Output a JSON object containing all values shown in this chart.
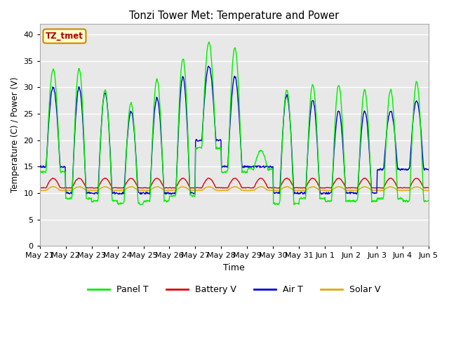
{
  "title": "Tonzi Tower Met: Temperature and Power",
  "xlabel": "Time",
  "ylabel": "Temperature (C) / Power (V)",
  "ylim": [
    0,
    42
  ],
  "yticks": [
    0,
    5,
    10,
    15,
    20,
    25,
    30,
    35,
    40
  ],
  "figure_bg": "#ffffff",
  "plot_bg": "#e8e8e8",
  "grid_color": "#ffffff",
  "legend_label": "TZ_tmet",
  "legend_items": [
    "Panel T",
    "Battery V",
    "Air T",
    "Solar V"
  ],
  "legend_colors": [
    "#00ee00",
    "#dd0000",
    "#0000dd",
    "#ddaa00"
  ],
  "line_colors": {
    "panel_t": "#00ee00",
    "battery_v": "#dd0000",
    "air_t": "#0000cc",
    "solar_v": "#ddaa00"
  },
  "x_tick_labels": [
    "May 21",
    "May 22",
    "May 23",
    "May 24",
    "May 25",
    "May 26",
    "May 27",
    "May 28",
    "May 29",
    "May 30",
    "May 31",
    "Jun 1",
    "Jun 2",
    "Jun 3",
    "Jun 4",
    "Jun 5"
  ],
  "n_days": 15,
  "pts_per_day": 48,
  "panel_peaks": [
    33.5,
    33.5,
    29.5,
    27.0,
    31.5,
    35.5,
    38.5,
    37.5,
    18.0,
    29.5,
    30.5,
    30.5,
    29.5,
    29.5,
    31.0
  ],
  "panel_troughs": [
    14.0,
    9.0,
    8.5,
    8.0,
    8.5,
    9.5,
    18.5,
    14.0,
    14.5,
    8.0,
    9.0,
    8.5,
    8.5,
    9.0,
    8.5
  ],
  "air_peaks": [
    30.0,
    30.0,
    29.0,
    25.5,
    28.0,
    32.0,
    34.0,
    32.0,
    15.0,
    28.5,
    27.5,
    25.5,
    25.5,
    25.5,
    27.5
  ],
  "air_troughs": [
    15.0,
    10.0,
    10.0,
    10.0,
    10.0,
    10.0,
    20.0,
    15.0,
    15.0,
    10.0,
    10.0,
    10.0,
    10.0,
    14.5,
    14.5
  ],
  "battery_base": 11.0,
  "battery_bump": 1.8,
  "solar_base": 10.5,
  "solar_bump": 0.7,
  "lw": 1.0
}
